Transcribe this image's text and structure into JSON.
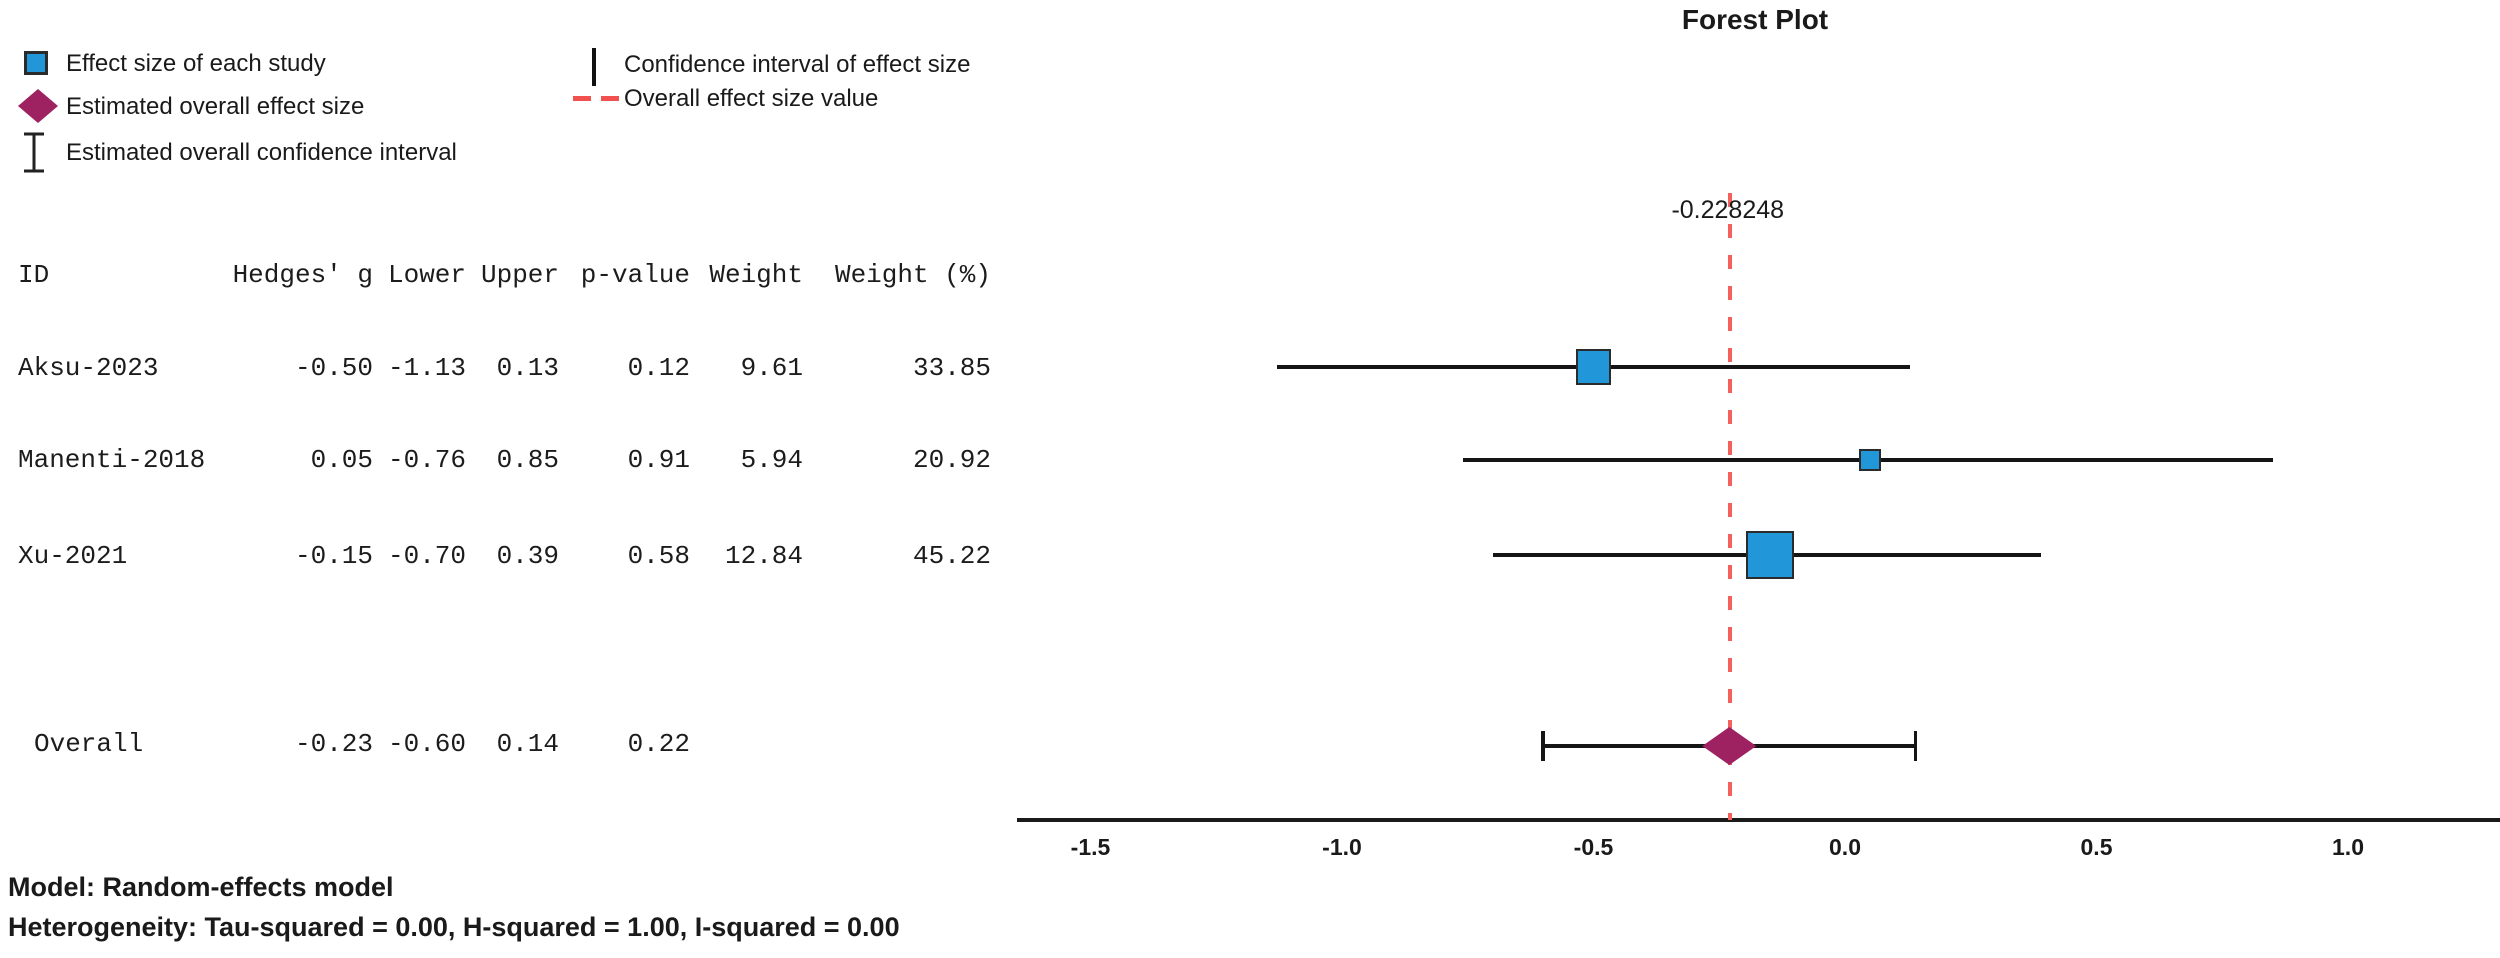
{
  "title": "Forest Plot",
  "legend": {
    "effect_size": "Effect size of each study",
    "overall_effect": "Estimated overall effect size",
    "overall_ci": "Estimated overall confidence interval",
    "ci_effect": "Confidence interval of effect size",
    "overall_value": "Overall effect size value"
  },
  "table": {
    "headers": {
      "id": "ID",
      "g": "Hedges' g",
      "lower": "Lower",
      "upper": "Upper",
      "p": "p-value",
      "weight": "Weight",
      "weight_pct": "Weight (%)"
    },
    "rows": [
      {
        "id": "Aksu-2023",
        "g": "-0.50",
        "lower": "-1.13",
        "upper": "0.13",
        "p": "0.12",
        "weight": "9.61",
        "weight_pct": "33.85"
      },
      {
        "id": "Manenti-2018",
        "g": "0.05",
        "lower": "-0.76",
        "upper": "0.85",
        "p": "0.91",
        "weight": "5.94",
        "weight_pct": "20.92"
      },
      {
        "id": "Xu-2021",
        "g": "-0.15",
        "lower": "-0.70",
        "upper": "0.39",
        "p": "0.58",
        "weight": "12.84",
        "weight_pct": "45.22"
      },
      {
        "id": "Overall",
        "g": "-0.23",
        "lower": "-0.60",
        "upper": "0.14",
        "p": "0.22",
        "weight": "",
        "weight_pct": ""
      }
    ]
  },
  "notes": {
    "model": "Model: Random-effects model",
    "heterogeneity": "Heterogeneity: Tau-squared = 0.00, H-squared = 1.00, I-squared = 0.00"
  },
  "chart_data": {
    "type": "forest",
    "title": "Forest Plot",
    "studies": [
      {
        "label": "Aksu-2023",
        "effect": -0.5,
        "ci_lower": -1.13,
        "ci_upper": 0.13,
        "p_value": 0.12,
        "weight": 9.61,
        "weight_pct": 33.85
      },
      {
        "label": "Manenti-2018",
        "effect": 0.05,
        "ci_lower": -0.76,
        "ci_upper": 0.85,
        "p_value": 0.91,
        "weight": 5.94,
        "weight_pct": 20.92
      },
      {
        "label": "Xu-2021",
        "effect": -0.15,
        "ci_lower": -0.7,
        "ci_upper": 0.39,
        "p_value": 0.58,
        "weight": 12.84,
        "weight_pct": 45.22
      }
    ],
    "overall": {
      "label": "Overall",
      "effect": -0.23,
      "ci_lower": -0.6,
      "ci_upper": 0.14,
      "p_value": 0.22
    },
    "overall_effect_value": -0.228248,
    "overall_effect_label": "-0.228248",
    "xticks": [
      -1.5,
      -1.0,
      -0.5,
      0.0,
      0.5,
      1.0
    ],
    "xlim": [
      -1.65,
      1.3
    ],
    "grid": false,
    "legend_position": "top-left",
    "model": "Random-effects model",
    "tau_squared": 0.0,
    "h_squared": 1.0,
    "i_squared": 0.0
  },
  "colors": {
    "study_marker": "#2196d9",
    "overall_marker": "#9e2161",
    "overall_line": "#f4605c",
    "ci_line": "#151515",
    "text": "#1a1a1a"
  }
}
